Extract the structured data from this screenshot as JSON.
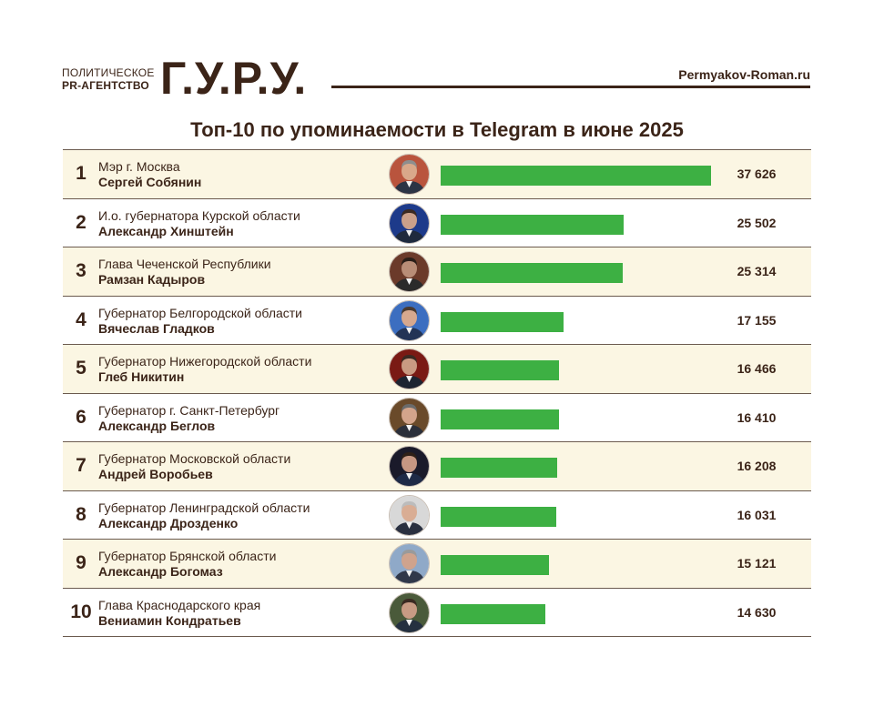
{
  "header": {
    "agency_line1": "Политическое",
    "agency_line2": "PR-агентство",
    "logo": "Г.У.Р.У.",
    "site": "Permyakov-Roman.ru"
  },
  "title": "Топ-10 по упоминаемости в Telegram в июне 2025",
  "colors": {
    "bar": "#3db043",
    "text": "#3b2418",
    "row_alt": "#fbf6e3"
  },
  "chart_data": {
    "type": "bar",
    "orientation": "horizontal",
    "title": "Топ-10 по упоминаемости в Telegram в июне 2025",
    "xlim": [
      0,
      37626
    ],
    "categories": [
      "Сергей Собянин",
      "Александр Хинштейн",
      "Рамзан Кадыров",
      "Вячеслав Гладков",
      "Глеб Никитин",
      "Александр Беглов",
      "Андрей Воробьев",
      "Александр Дрозденко",
      "Александр Богомаз",
      "Вениамин Кондратьев"
    ],
    "values": [
      37626,
      25502,
      25314,
      17155,
      16466,
      16410,
      16208,
      16031,
      15121,
      14630
    ],
    "rows": [
      {
        "rank": "1",
        "position": "Мэр г. Москва",
        "name": "Сергей Собянин",
        "value": 37626,
        "value_label": "37 626"
      },
      {
        "rank": "2",
        "position": "И.о. губернатора Курской области",
        "name": "Александр Хинштейн",
        "value": 25502,
        "value_label": "25 502"
      },
      {
        "rank": "3",
        "position": "Глава Чеченской Республики",
        "name": "Рамзан Кадыров",
        "value": 25314,
        "value_label": "25 314"
      },
      {
        "rank": "4",
        "position": "Губернатор Белгородской области",
        "name": "Вячеслав Гладков",
        "value": 17155,
        "value_label": "17 155"
      },
      {
        "rank": "5",
        "position": "Губернатор Нижегородской области",
        "name": "Глеб Никитин",
        "value": 16466,
        "value_label": "16 466"
      },
      {
        "rank": "6",
        "position": "Губернатор г. Санкт-Петербург",
        "name": "Александр Беглов",
        "value": 16410,
        "value_label": "16 410"
      },
      {
        "rank": "7",
        "position": "Губернатор Московской области",
        "name": "Андрей Воробьев",
        "value": 16208,
        "value_label": "16 208"
      },
      {
        "rank": "8",
        "position": "Губернатор Ленинградской области",
        "name": "Александр Дрозденко",
        "value": 16031,
        "value_label": "16 031"
      },
      {
        "rank": "9",
        "position": "Губернатор Брянской области",
        "name": "Александр Богомаз",
        "value": 15121,
        "value_label": "15 121"
      },
      {
        "rank": "10",
        "position": "Глава Краснодарского края",
        "name": "Вениамин Кондратьев",
        "value": 14630,
        "value_label": "14 630"
      }
    ]
  }
}
